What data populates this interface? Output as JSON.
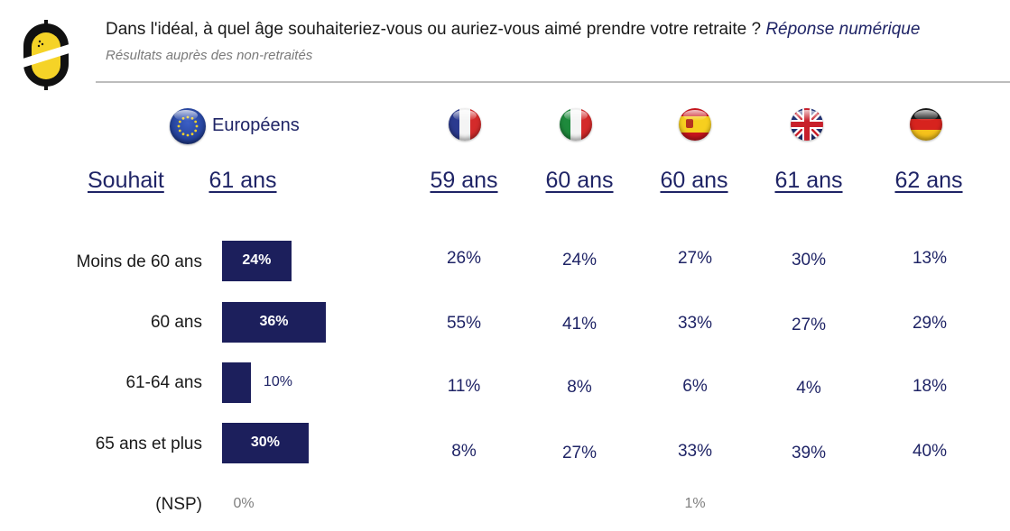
{
  "header": {
    "question": "Dans l'idéal, à quel âge souhaiteriez-vous ou auriez-vous aimé prendre votre retraite ?",
    "question_note": "Réponse numérique",
    "subtitle": "Résultats auprès des non-retraités"
  },
  "colors": {
    "navy": "#1c1f5c",
    "text_navy": "#1f2466",
    "grey": "#7f7f7f",
    "logo_yellow": "#f5d327"
  },
  "europe": {
    "label": "Européens",
    "icon": "eu-flag-icon"
  },
  "souhait_label": "Souhait",
  "countries": [
    {
      "icon": "france-flag-icon",
      "souhait": "59 ans"
    },
    {
      "icon": "italy-flag-icon",
      "souhait": "60 ans"
    },
    {
      "icon": "spain-flag-icon",
      "souhait": "60 ans"
    },
    {
      "icon": "uk-flag-icon",
      "souhait": "61 ans"
    },
    {
      "icon": "germany-flag-icon",
      "souhait": "62 ans"
    }
  ],
  "chart_data": {
    "type": "table",
    "title": "Dans l'idéal, à quel âge souhaiteriez-vous ou auriez-vous aimé prendre votre retraite ?",
    "categories": [
      "Moins de 60 ans",
      "60 ans",
      "61-64 ans",
      "65 ans et plus",
      "(NSP)"
    ],
    "europe_souhait": "61 ans",
    "europe_values": [
      24,
      36,
      10,
      30,
      0
    ],
    "europe_labels": [
      "24%",
      "36%",
      "10%",
      "30%",
      "0%"
    ],
    "series": [
      {
        "name": "France",
        "souhait": "59 ans",
        "values": [
          26,
          55,
          11,
          8,
          null
        ],
        "labels": [
          "26%",
          "55%",
          "11%",
          "8%",
          ""
        ]
      },
      {
        "name": "Italie",
        "souhait": "60 ans",
        "values": [
          24,
          41,
          8,
          27,
          null
        ],
        "labels": [
          "24%",
          "41%",
          "8%",
          "27%",
          ""
        ]
      },
      {
        "name": "Espagne",
        "souhait": "60 ans",
        "values": [
          27,
          33,
          6,
          33,
          1
        ],
        "labels": [
          "27%",
          "33%",
          "6%",
          "33%",
          "1%"
        ]
      },
      {
        "name": "Royaume-Uni",
        "souhait": "61 ans",
        "values": [
          30,
          27,
          4,
          39,
          null
        ],
        "labels": [
          "30%",
          "27%",
          "4%",
          "39%",
          ""
        ]
      },
      {
        "name": "Allemagne",
        "souhait": "62 ans",
        "values": [
          13,
          29,
          18,
          40,
          null
        ],
        "labels": [
          "13%",
          "29%",
          "18%",
          "40%",
          ""
        ]
      }
    ],
    "unit": "%"
  }
}
